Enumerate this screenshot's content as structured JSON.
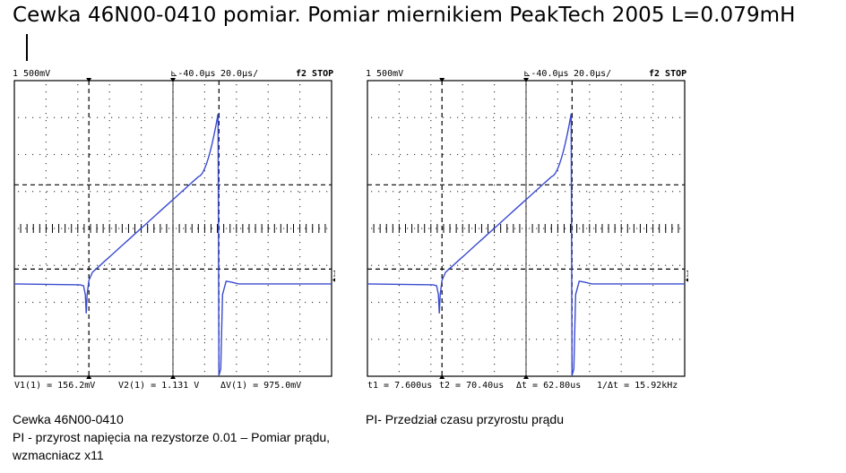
{
  "title": "Cewka 46N00-0410  pomiar. Pomiar miernikiem PeakTech 2005 L=0.079mH",
  "chart_data": [
    {
      "type": "line",
      "name": "left-scope",
      "header": {
        "ch": "1",
        "vdiv": "500mV",
        "trig": "-40.0µs",
        "tdiv": "20.0µs/",
        "status": "f2 STOP"
      },
      "footer": [
        "V1(1) = 156.2mV",
        "V2(1) = 1.131 V",
        "ΔV(1) = 975.0mV"
      ],
      "grid": true,
      "divisions": {
        "x": 10,
        "y": 8
      },
      "color": "#3a4bd0",
      "x_unit_per_div": "20.0µs",
      "y_unit_per_div": "500mV"
    },
    {
      "type": "line",
      "name": "right-scope",
      "header": {
        "ch": "1",
        "vdiv": "500mV",
        "trig": "-40.0µs",
        "tdiv": "20.0µs/",
        "status": "f2 STOP"
      },
      "footer": [
        "t1 = 7.600us",
        "t2 = 70.40us",
        "Δt = 62.80us",
        "1/Δt = 15.92kHz"
      ],
      "grid": true,
      "divisions": {
        "x": 10,
        "y": 8
      },
      "color": "#3a4bd0",
      "x_unit_per_div": "20.0µs",
      "y_unit_per_div": "500mV"
    }
  ],
  "captions": {
    "left": [
      "Cewka 46N00-0410",
      "PI - przyrost napięcia na rezystorze 0.01 – Pomiar prądu, wzmacniacz x11"
    ],
    "right": [
      "PI- Przedział czasu przyrostu prądu"
    ]
  }
}
